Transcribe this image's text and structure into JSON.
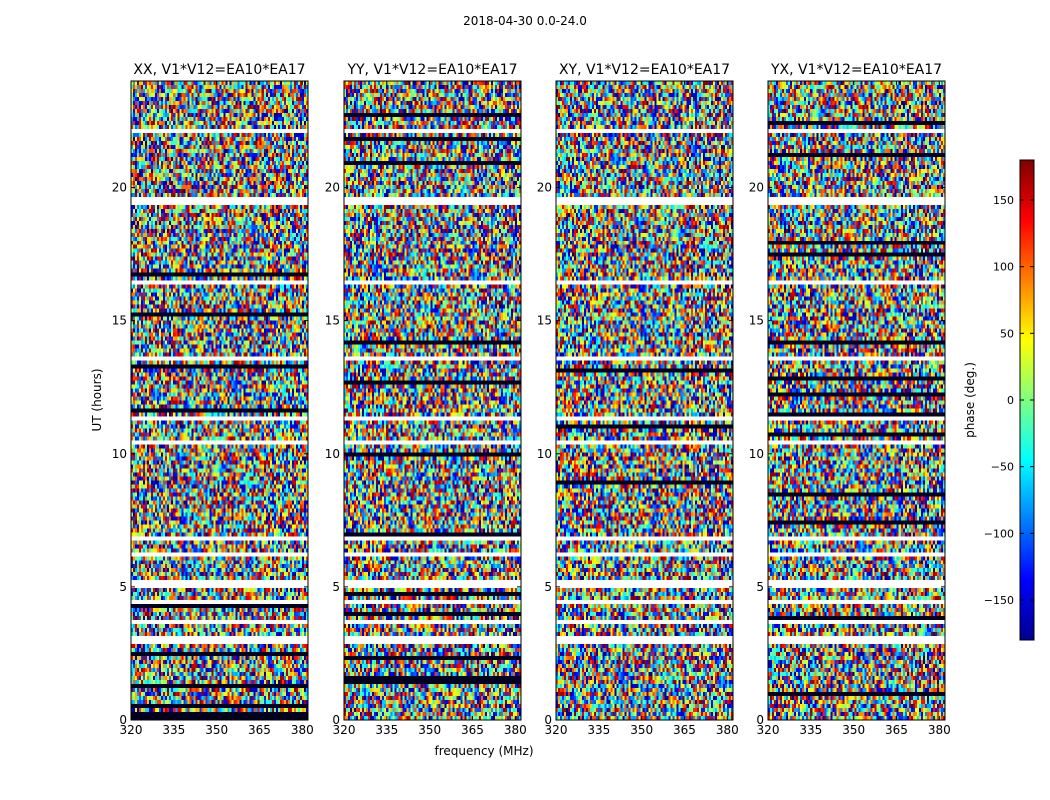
{
  "figure": {
    "title": "2018-04-30 0.0-24.0"
  },
  "chart_data": {
    "type": "heatmap",
    "title": "2018-04-30 0.0-24.0",
    "xlabel": "frequency (MHz)",
    "ylabel": "UT (hours)",
    "xlim": [
      320,
      382
    ],
    "ylim": [
      0,
      24
    ],
    "xticks": [
      "320",
      "335",
      "350",
      "365",
      "380"
    ],
    "yticks": [
      "0",
      "5",
      "10",
      "15",
      "20"
    ],
    "colorbar": {
      "label": "phase (deg.)",
      "range": [
        -180,
        180
      ],
      "ticks": [
        "−150",
        "−100",
        "−50",
        "0",
        "50",
        "100",
        "150"
      ],
      "colormap": "jet",
      "colors": [
        "#00008f",
        "#0000ff",
        "#00ffff",
        "#80ff80",
        "#ffff00",
        "#ff0000",
        "#800000"
      ]
    },
    "panels": [
      {
        "title": "XX, V1*V12=EA10*EA17",
        "polarization": "XX"
      },
      {
        "title": "YY, V1*V12=EA10*EA17",
        "polarization": "YY"
      },
      {
        "title": "XY, V1*V12=EA10*EA17",
        "polarization": "XY"
      },
      {
        "title": "YX, V1*V12=EA10*EA17",
        "polarization": "YX"
      }
    ],
    "flagged_bands_hours": [
      [
        2.9,
        3.2
      ],
      [
        3.4,
        3.5
      ],
      [
        3.6,
        3.7
      ],
      [
        4.3,
        4.45
      ],
      [
        5.0,
        5.2
      ],
      [
        6.2,
        6.3
      ],
      [
        6.8,
        6.9
      ],
      [
        8.2,
        8.3
      ],
      [
        10.3,
        10.5
      ],
      [
        11.3,
        11.4
      ],
      [
        13.5,
        13.7
      ],
      [
        16.3,
        16.5
      ],
      [
        19.4,
        19.6
      ],
      [
        22.0,
        22.15
      ],
      [
        22.6,
        22.7
      ]
    ],
    "grid": false,
    "legend": "colorbar-right"
  }
}
